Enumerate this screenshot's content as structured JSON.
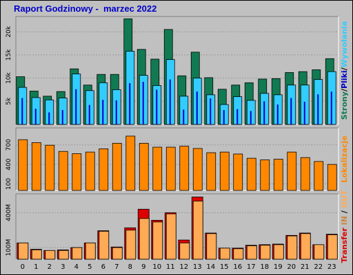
{
  "title": "Raport Godzinowy -  marzec 2022",
  "colors": {
    "background": "#c0c0c0",
    "title": "#0000c8",
    "strony": "#117a52",
    "pliki": "#0000cc",
    "wywolania": "#33ccff",
    "lokalizacje": "#ff8800",
    "transfer": "#dd0000",
    "in": "#cc8844",
    "out": "#ffaa55"
  },
  "chart_data": [
    {
      "type": "bar",
      "name": "top",
      "categories": [
        "0",
        "1",
        "2",
        "3",
        "4",
        "5",
        "6",
        "7",
        "8",
        "9",
        "10",
        "11",
        "12",
        "13",
        "14",
        "15",
        "16",
        "17",
        "18",
        "19",
        "20",
        "21",
        "22",
        "23"
      ],
      "ylim": [
        0,
        23000
      ],
      "yticks": [
        5000,
        10000,
        15000,
        20000
      ],
      "ytick_labels": [
        "5k",
        "10k",
        "15k",
        "20k"
      ],
      "grid": true,
      "right_label": [
        {
          "text": "Strony",
          "color": "#117a52"
        },
        {
          "text": "/",
          "color": "#000000"
        },
        {
          "text": "Pliki",
          "color": "#0000cc"
        },
        {
          "text": "/",
          "color": "#000000"
        },
        {
          "text": "Wywołania",
          "color": "#33ccff"
        }
      ],
      "series": [
        {
          "name": "Strony",
          "values": [
            10300,
            7200,
            6100,
            7100,
            12000,
            8500,
            10800,
            10800,
            22800,
            16200,
            14100,
            20500,
            10500,
            15600,
            10100,
            7600,
            8500,
            9000,
            9800,
            9900,
            11200,
            11400,
            11800,
            14200
          ]
        },
        {
          "name": "Pliki",
          "values": [
            5700,
            3400,
            2600,
            3100,
            7600,
            4200,
            5300,
            5200,
            8900,
            9200,
            7500,
            9700,
            3200,
            7100,
            5600,
            3100,
            3300,
            2900,
            5000,
            4300,
            5700,
            4900,
            6500,
            7100
          ]
        },
        {
          "name": "Wywołania",
          "values": [
            8000,
            5800,
            5300,
            5700,
            10900,
            7300,
            9000,
            7500,
            15800,
            10600,
            8400,
            14000,
            6100,
            10000,
            6400,
            4300,
            6000,
            5200,
            6700,
            6400,
            8500,
            8500,
            9700,
            11400
          ]
        }
      ]
    },
    {
      "type": "bar",
      "name": "middle",
      "categories": [
        "0",
        "1",
        "2",
        "3",
        "4",
        "5",
        "6",
        "7",
        "8",
        "9",
        "10",
        "11",
        "12",
        "13",
        "14",
        "15",
        "16",
        "17",
        "18",
        "19",
        "20",
        "21",
        "22",
        "23"
      ],
      "ylim": [
        0,
        940
      ],
      "yticks": [
        100,
        400,
        700
      ],
      "ytick_labels": [
        "100",
        "400",
        "700"
      ],
      "grid": true,
      "right_label": [
        {
          "text": "Lokalizacje",
          "color": "#ff8800"
        }
      ],
      "series": [
        {
          "name": "Lokalizacje",
          "values": [
            780,
            735,
            695,
            600,
            565,
            590,
            640,
            725,
            835,
            725,
            665,
            665,
            680,
            645,
            580,
            590,
            560,
            495,
            470,
            480,
            590,
            505,
            445,
            400
          ]
        }
      ]
    },
    {
      "type": "bar",
      "name": "bottom",
      "categories": [
        "0",
        "1",
        "2",
        "3",
        "4",
        "5",
        "6",
        "7",
        "8",
        "9",
        "10",
        "11",
        "12",
        "13",
        "14",
        "15",
        "16",
        "17",
        "18",
        "19",
        "20",
        "21",
        "22",
        "23"
      ],
      "ylim": [
        0,
        550
      ],
      "yticks": [
        100,
        400
      ],
      "ytick_labels": [
        "100M",
        "400M"
      ],
      "grid": true,
      "right_label": [
        {
          "text": "Transfer",
          "color": "#dd0000"
        },
        {
          "text": "  IN",
          "color": "#cc8844"
        },
        {
          "text": " / ",
          "color": "#000000"
        },
        {
          "text": "OUT",
          "color": "#ffaa55"
        }
      ],
      "series": [
        {
          "name": "Transfer",
          "values": [
            140,
            85,
            75,
            80,
            100,
            140,
            245,
            105,
            270,
            430,
            335,
            400,
            165,
            535,
            225,
            95,
            95,
            120,
            125,
            130,
            205,
            225,
            125,
            215
          ]
        },
        {
          "name": "OUT",
          "values": [
            140,
            80,
            75,
            75,
            100,
            140,
            240,
            100,
            250,
            350,
            320,
            390,
            140,
            500,
            220,
            95,
            90,
            115,
            120,
            125,
            200,
            220,
            125,
            210
          ]
        }
      ]
    }
  ],
  "xlabels": [
    "0",
    "1",
    "2",
    "3",
    "4",
    "5",
    "6",
    "7",
    "8",
    "9",
    "10",
    "11",
    "12",
    "13",
    "14",
    "15",
    "16",
    "17",
    "18",
    "19",
    "20",
    "21",
    "22",
    "23"
  ]
}
